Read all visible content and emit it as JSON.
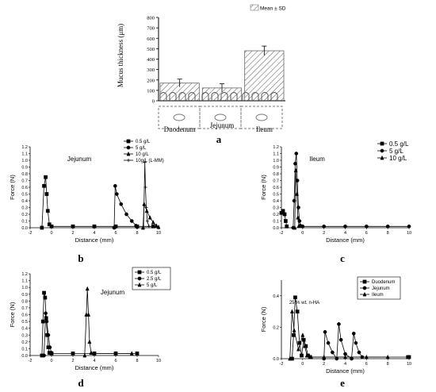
{
  "panel_labels": [
    "a",
    "b",
    "c",
    "d",
    "e"
  ],
  "chart_data": [
    {
      "panel": "a",
      "type": "bar",
      "ylabel": "Mucus thickness (μm)",
      "ylim": [
        0,
        800
      ],
      "yticks": [
        0,
        100,
        200,
        300,
        400,
        500,
        600,
        700,
        800
      ],
      "legend": "Mean ± SD",
      "legend_position": "top-right",
      "categories": [
        "Duodenum",
        "Jejunum",
        "Ileum"
      ],
      "values": [
        170,
        123,
        480
      ],
      "errors": [
        38,
        40,
        45
      ]
    },
    {
      "panel": "b",
      "type": "line",
      "title": "Jejunum",
      "xlabel": "Distance (mm)",
      "ylabel": "Force (N)",
      "xlim": [
        -2,
        10
      ],
      "ylim": [
        0,
        1.2
      ],
      "xticks": [
        -2,
        0,
        2,
        4,
        6,
        8,
        10
      ],
      "yticks": [
        0.0,
        0.1,
        0.2,
        0.3,
        0.4,
        0.5,
        0.6,
        0.7,
        0.8,
        0.9,
        1.0,
        1.1,
        1.2
      ],
      "legend_position": "top-right",
      "series": [
        {
          "name": "0.5 g/L",
          "marker": "square",
          "x": [
            -0.9,
            -0.7,
            -0.55,
            -0.45,
            -0.35,
            -0.2,
            0,
            2,
            4,
            6,
            8,
            9.5
          ],
          "y": [
            0.0,
            0.62,
            0.75,
            0.5,
            0.25,
            0.05,
            0.02,
            0.02,
            0.02,
            0.02,
            0.02,
            0.02
          ]
        },
        {
          "name": "5 g/L",
          "marker": "circle",
          "x": [
            5.85,
            5.95,
            6.1,
            6.5,
            7.0,
            7.5,
            7.9,
            8.0
          ],
          "y": [
            0.0,
            0.62,
            0.5,
            0.35,
            0.2,
            0.1,
            0.03,
            0.01
          ]
        },
        {
          "name": "10 g/L",
          "marker": "triangle",
          "x": [
            8.55,
            8.65,
            8.9,
            9.2,
            9.5,
            9.8,
            10
          ],
          "y": [
            0.0,
            0.35,
            0.25,
            0.15,
            0.08,
            0.03,
            0.01
          ]
        },
        {
          "name": "10g/L (L-MM)",
          "marker": "star",
          "x": [
            8.6,
            8.72,
            8.78,
            8.85,
            8.95,
            9.1
          ],
          "y": [
            0.0,
            0.97,
            0.6,
            0.3,
            0.1,
            0.02
          ]
        }
      ]
    },
    {
      "panel": "c",
      "type": "line",
      "title": "Ileum",
      "xlabel": "Distance (mm)",
      "ylabel": "Force (N)",
      "xlim": [
        -2,
        10
      ],
      "ylim": [
        0,
        1.2
      ],
      "xticks": [
        -2,
        0,
        2,
        4,
        6,
        8,
        10
      ],
      "yticks": [
        0.0,
        0.1,
        0.2,
        0.3,
        0.4,
        0.5,
        0.6,
        0.7,
        0.8,
        0.9,
        1.0,
        1.1,
        1.2
      ],
      "legend_position": "top-right",
      "series": [
        {
          "name": "0.5 g/L",
          "marker": "square",
          "x": [
            -2,
            -1.85,
            -1.7,
            -1.6,
            -1.5
          ],
          "y": [
            0.22,
            0.25,
            0.2,
            0.1,
            0.02
          ]
        },
        {
          "name": "5 g/L",
          "marker": "circle",
          "x": [
            -0.9,
            -0.8,
            -0.7,
            -0.6,
            -0.5,
            -0.4,
            -0.3,
            -0.2,
            0,
            2,
            4,
            6,
            8,
            10
          ],
          "y": [
            0.0,
            0.4,
            0.95,
            1.1,
            0.7,
            0.3,
            0.1,
            0.03,
            0.02,
            0.02,
            0.02,
            0.02,
            0.02,
            0.02
          ]
        },
        {
          "name": "10 g/L",
          "marker": "triangle",
          "x": [
            -0.75,
            -0.65,
            -0.55,
            -0.45,
            -0.35
          ],
          "y": [
            0.0,
            0.85,
            0.5,
            0.15,
            0.03
          ]
        }
      ]
    },
    {
      "panel": "d",
      "type": "line",
      "title": "Jejunum",
      "xlabel": "Distance (mm)",
      "ylabel": "Force (N)",
      "xlim": [
        -2,
        10
      ],
      "ylim": [
        0,
        1.2
      ],
      "xticks": [
        -2,
        0,
        2,
        4,
        6,
        8,
        10
      ],
      "yticks": [
        0.0,
        0.1,
        0.2,
        0.3,
        0.4,
        0.5,
        0.6,
        0.7,
        0.8,
        0.9,
        1.0,
        1.1,
        1.2
      ],
      "legend_position": "top-right",
      "series": [
        {
          "name": "0.5 g/L",
          "marker": "square",
          "x": [
            -0.9,
            -0.8,
            -0.7,
            -0.6,
            -0.5,
            -0.4,
            -0.3,
            -0.2,
            0,
            2,
            4,
            6,
            8
          ],
          "y": [
            0.0,
            0.5,
            0.92,
            0.85,
            0.55,
            0.3,
            0.12,
            0.04,
            0.03,
            0.03,
            0.03,
            0.03,
            0.03
          ]
        },
        {
          "name": "2.5 g/L",
          "marker": "circle",
          "x": [
            -0.7,
            -0.55,
            -0.45,
            -0.3,
            -0.15,
            0
          ],
          "y": [
            0.0,
            0.62,
            0.5,
            0.3,
            0.12,
            0.04
          ]
        },
        {
          "name": "5 g/L",
          "marker": "triangle",
          "x": [
            3.1,
            3.25,
            3.35,
            3.45,
            3.55,
            3.7,
            4,
            6,
            7.5
          ],
          "y": [
            0.0,
            0.6,
            0.98,
            0.6,
            0.2,
            0.04,
            0.03,
            0.03,
            0.03
          ]
        }
      ]
    },
    {
      "panel": "e",
      "type": "line",
      "title": "25 % wt. n-HA",
      "xlabel": "Distance (mm)",
      "ylabel": "Force (N)",
      "xlim": [
        -2,
        10
      ],
      "ylim": [
        0,
        0.5
      ],
      "xticks": [
        -2,
        0,
        2,
        4,
        6,
        8,
        10
      ],
      "yticks": [
        0.0,
        0.2,
        0.4
      ],
      "legend_position": "top-right",
      "series": [
        {
          "name": "Duodenum",
          "marker": "square",
          "x": [
            -1.0,
            -0.85,
            -0.7,
            -0.5,
            -0.3,
            -0.1,
            0.1,
            0.3,
            0.5,
            0.7,
            9.9,
            10
          ],
          "y": [
            0.0,
            0.15,
            0.39,
            0.3,
            0.1,
            0.02,
            0.12,
            0.08,
            0.02,
            0.01,
            0.01,
            0.01
          ]
        },
        {
          "name": "Jejunum",
          "marker": "circle",
          "x": [
            2.0,
            2.1,
            2.4,
            2.8,
            3.2,
            3.4,
            3.6,
            4.0,
            4.6,
            4.8,
            5.0,
            5.3,
            5.6
          ],
          "y": [
            0.0,
            0.17,
            0.1,
            0.04,
            0.0,
            0.22,
            0.12,
            0.03,
            0.0,
            0.16,
            0.1,
            0.04,
            0.01
          ]
        },
        {
          "name": "Ileum",
          "marker": "triangle",
          "x": [
            -1.2,
            -1.0,
            -0.8,
            -0.4,
            0,
            0.2,
            0.4,
            0.8,
            2,
            4,
            6,
            8
          ],
          "y": [
            0.0,
            0.3,
            0.18,
            0.06,
            0.15,
            0.08,
            0.02,
            0.01,
            0.01,
            0.01,
            0.01,
            0.01
          ]
        }
      ]
    }
  ]
}
